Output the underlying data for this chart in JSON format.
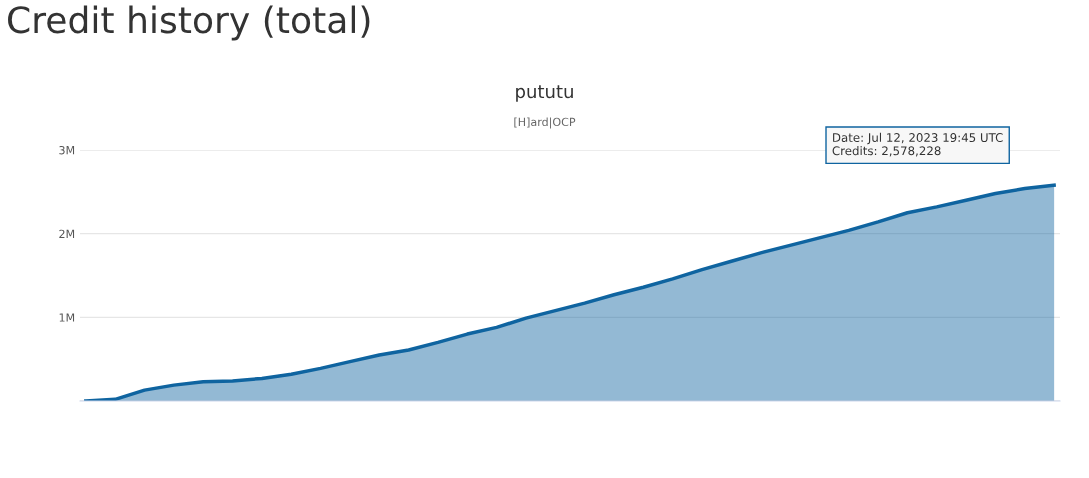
{
  "chart_data": {
    "type": "area",
    "title": "pututu",
    "subtitle": "[H]ard|OCP",
    "annotations": [
      "Credit history (total)",
      "Date: Jul 12, 2023 19:45 UTC\nCredits: 2,578,228"
    ],
    "categories": [
      null,
      null,
      null,
      null,
      null,
      null,
      null,
      null,
      null,
      null,
      null,
      null,
      null,
      null,
      null,
      null,
      null,
      null,
      null,
      null,
      null,
      null,
      null,
      null,
      null,
      null,
      null,
      null,
      null,
      null,
      null,
      null,
      null,
      null
    ],
    "series": [
      {
        "color": "#0f64a0",
        "values": [
          0,
          20000,
          130000,
          190000,
          230000,
          240000,
          270000,
          320000,
          390000,
          470000,
          550000,
          610000,
          700000,
          800000,
          880000,
          990000,
          1080000,
          1170000,
          1270000,
          1360000,
          1460000,
          1570000,
          1670000,
          1770000,
          1860000,
          1950000,
          2040000,
          2140000,
          2250000,
          2320000,
          2400000,
          2480000,
          2540000,
          2578228
        ]
      }
    ],
    "ylim": [
      0,
      3000000
    ],
    "yticks": [
      {
        "value": 0,
        "label": null
      },
      {
        "value": 1000000,
        "label": "1M"
      },
      {
        "value": 2000000,
        "label": "2M"
      },
      {
        "value": 3000000,
        "label": "3M"
      }
    ],
    "grid": "y",
    "legend": false,
    "marker": "none",
    "tick_labels": "y"
  }
}
